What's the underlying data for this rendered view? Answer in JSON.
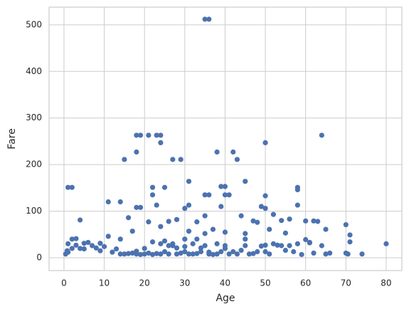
{
  "chart_data": {
    "type": "scatter",
    "x_label": "Age",
    "y_label": "Fare",
    "color": "#4c72b0",
    "grid": true,
    "xlim": [
      -3.7,
      83.9
    ],
    "ylim": [
      -27.5,
      538
    ],
    "xticks": [
      0,
      10,
      20,
      30,
      40,
      50,
      60,
      70,
      80
    ],
    "yticks": [
      0,
      100,
      200,
      300,
      400,
      500
    ],
    "x": [
      35,
      36,
      18,
      19,
      21,
      23,
      24,
      64,
      24,
      50,
      18,
      38,
      42,
      43,
      15,
      27,
      29,
      31,
      45,
      1,
      2,
      22,
      25,
      58,
      58,
      39,
      40,
      22,
      35,
      36,
      40,
      41,
      50,
      11,
      14,
      23,
      31,
      58,
      18,
      19,
      30,
      49,
      50,
      39,
      4,
      60,
      62,
      70,
      16,
      28,
      35,
      44,
      47,
      52,
      54,
      56,
      48,
      33,
      26,
      21,
      17,
      24,
      31,
      37,
      45,
      51,
      61,
      65,
      71,
      53,
      0.4,
      1,
      2,
      3,
      4,
      5,
      6,
      7,
      8,
      9,
      10,
      11,
      12,
      13,
      14,
      15,
      16,
      17,
      18,
      19,
      20,
      21,
      22,
      23,
      24,
      25,
      26,
      27,
      28,
      29,
      30,
      31,
      32,
      33,
      34,
      35,
      36,
      37,
      38,
      39,
      40,
      41,
      42,
      43,
      44,
      45,
      46,
      47,
      48,
      49,
      50,
      51,
      52,
      54,
      55,
      56,
      57,
      58,
      59,
      60,
      61,
      62,
      63,
      64,
      65,
      66,
      70,
      70.5,
      71,
      74,
      80,
      1,
      2,
      3,
      0.8,
      0.9,
      5,
      9,
      14,
      18,
      22,
      24,
      26,
      28,
      30,
      32,
      34,
      36,
      38,
      40,
      20,
      25,
      30,
      35,
      40,
      45,
      50,
      55,
      27,
      33
    ],
    "values": [
      512,
      512,
      263,
      263,
      263,
      263,
      263,
      263,
      247,
      247,
      227,
      227,
      227,
      211,
      211,
      211,
      211,
      164,
      164,
      151,
      151,
      151,
      151,
      151,
      146,
      153,
      153,
      135,
      135,
      135,
      135,
      135,
      133,
      120,
      120,
      113,
      113,
      113,
      108,
      108,
      106,
      110,
      106,
      110,
      81,
      79,
      79,
      71,
      86,
      82,
      90,
      90,
      79,
      93,
      80,
      83,
      76,
      77,
      78,
      77,
      57,
      67,
      57,
      61,
      52,
      61,
      33,
      61,
      49,
      27,
      8,
      30,
      40,
      27,
      20,
      31,
      33,
      26,
      21,
      31,
      24,
      46,
      12,
      19,
      8,
      8,
      9,
      10,
      8,
      7,
      8,
      10,
      7,
      9,
      8,
      13,
      8,
      26,
      8,
      10,
      13,
      8,
      8,
      9,
      13,
      26,
      8,
      7,
      8,
      13,
      26,
      8,
      13,
      8,
      16,
      26,
      8,
      9,
      13,
      25,
      13,
      8,
      30,
      26,
      16,
      26,
      13,
      30,
      7,
      39,
      32,
      10,
      78,
      26,
      8,
      10,
      10,
      8,
      34,
      8,
      30,
      12,
      20,
      41,
      15,
      12,
      19,
      15,
      40,
      14,
      34,
      30,
      26,
      21,
      24,
      30,
      21,
      12,
      30,
      20,
      20,
      36,
      40,
      52,
      55,
      40,
      27,
      53,
      30,
      40
    ]
  }
}
